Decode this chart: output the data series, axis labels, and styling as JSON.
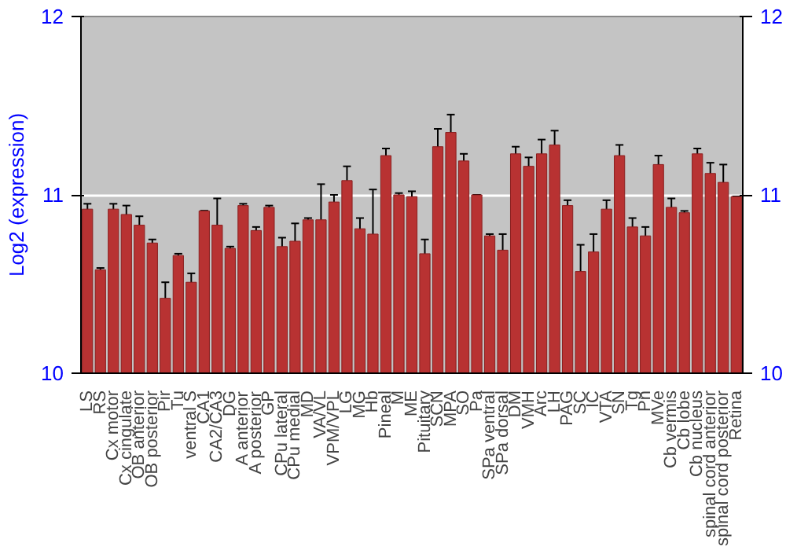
{
  "chart_data": {
    "type": "bar",
    "ylabel": "Log2 (expression)",
    "categories": [
      "LS",
      "RS",
      "Cx motor",
      "Cx cingulate",
      "OB anterior",
      "OB posterior",
      "Pir",
      "Tu",
      "ventral S",
      "CA1",
      "CA2/CA3",
      "DG",
      "A anterior",
      "A posterior",
      "GP",
      "CPu lateral",
      "CPu medial",
      "MD",
      "VA/VL",
      "VPM/VPL",
      "LG",
      "MG",
      "Hb",
      "Pineal",
      "M",
      "ME",
      "Pituitary",
      "SCN",
      "MPA",
      "SO",
      "Pa",
      "SPa ventral",
      "SPa dorsal",
      "DM",
      "VMH",
      "Arc",
      "LH",
      "PAG",
      "SC",
      "IC",
      "VTA",
      "SN",
      "Tg",
      "Pn",
      "MVe",
      "Cb vermis",
      "Cb lobe",
      "Cb nucleus",
      "spinal cord anterior",
      "spinal cord posterior",
      "Retina"
    ],
    "values": [
      10.92,
      10.58,
      10.92,
      10.89,
      10.83,
      10.73,
      10.42,
      10.66,
      10.51,
      10.91,
      10.83,
      10.7,
      10.94,
      10.8,
      10.93,
      10.71,
      10.74,
      10.86,
      10.86,
      10.96,
      11.08,
      10.81,
      10.78,
      11.22,
      11.0,
      10.99,
      10.67,
      11.27,
      11.35,
      11.19,
      11.0,
      10.77,
      10.69,
      11.23,
      11.16,
      11.23,
      11.28,
      10.94,
      10.57,
      10.68,
      10.92,
      11.22,
      10.82,
      10.77,
      11.17,
      10.93,
      10.9,
      11.23,
      11.12,
      11.07,
      10.99
    ],
    "errors": [
      0.03,
      0.01,
      0.03,
      0.05,
      0.05,
      0.02,
      0.09,
      0.01,
      0.05,
      0.0,
      0.15,
      0.01,
      0.01,
      0.02,
      0.01,
      0.05,
      0.1,
      0.01,
      0.2,
      0.04,
      0.08,
      0.06,
      0.25,
      0.04,
      0.01,
      0.03,
      0.08,
      0.1,
      0.1,
      0.04,
      0.0,
      0.01,
      0.09,
      0.04,
      0.05,
      0.08,
      0.08,
      0.03,
      0.15,
      0.1,
      0.05,
      0.06,
      0.05,
      0.05,
      0.05,
      0.05,
      0.01,
      0.03,
      0.06,
      0.1,
      0.0
    ],
    "color": "#b83232",
    "ylim": [
      10,
      12
    ],
    "yticks": [
      10,
      11,
      12
    ],
    "y2lim": [
      10,
      12
    ],
    "y2ticks": [
      10,
      11,
      12
    ],
    "grid": "y"
  }
}
